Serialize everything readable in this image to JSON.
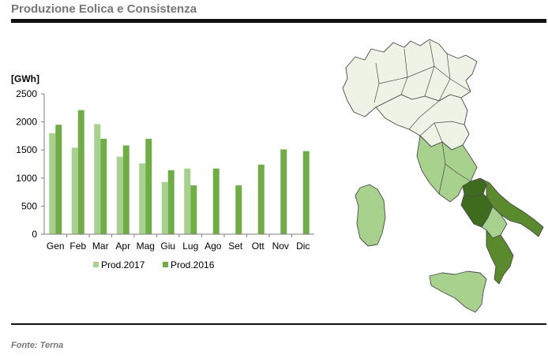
{
  "page": {
    "title": "Produzione Eolica e Consistenza",
    "source": "Fonte: Terna"
  },
  "colors": {
    "prod_2017": "#a9d18e",
    "prod_2016": "#70ad47",
    "map_low": "#eef3e6",
    "map_mid": "#a9d18e",
    "map_high": "#5a8a2d",
    "map_top": "#3f6b1f"
  },
  "chart_data": {
    "type": "bar",
    "ylabel": "[GWh]",
    "ylim": [
      0,
      2500
    ],
    "yticks": [
      0,
      500,
      1000,
      1500,
      2000,
      2500
    ],
    "categories": [
      "Gen",
      "Feb",
      "Mar",
      "Apr",
      "Mag",
      "Giu",
      "Lug",
      "Ago",
      "Set",
      "Ott",
      "Nov",
      "Dic"
    ],
    "series": [
      {
        "name": "Prod.2017",
        "color": "#a9d18e",
        "values": [
          1800,
          1540,
          1960,
          1380,
          1260,
          930,
          1170,
          null,
          null,
          null,
          null,
          null
        ]
      },
      {
        "name": "Prod.2016",
        "color": "#70ad47",
        "values": [
          1950,
          2210,
          1700,
          1580,
          1700,
          1140,
          870,
          1170,
          870,
          1240,
          1510,
          1480
        ]
      }
    ],
    "legend": "bottom",
    "grid": false
  }
}
